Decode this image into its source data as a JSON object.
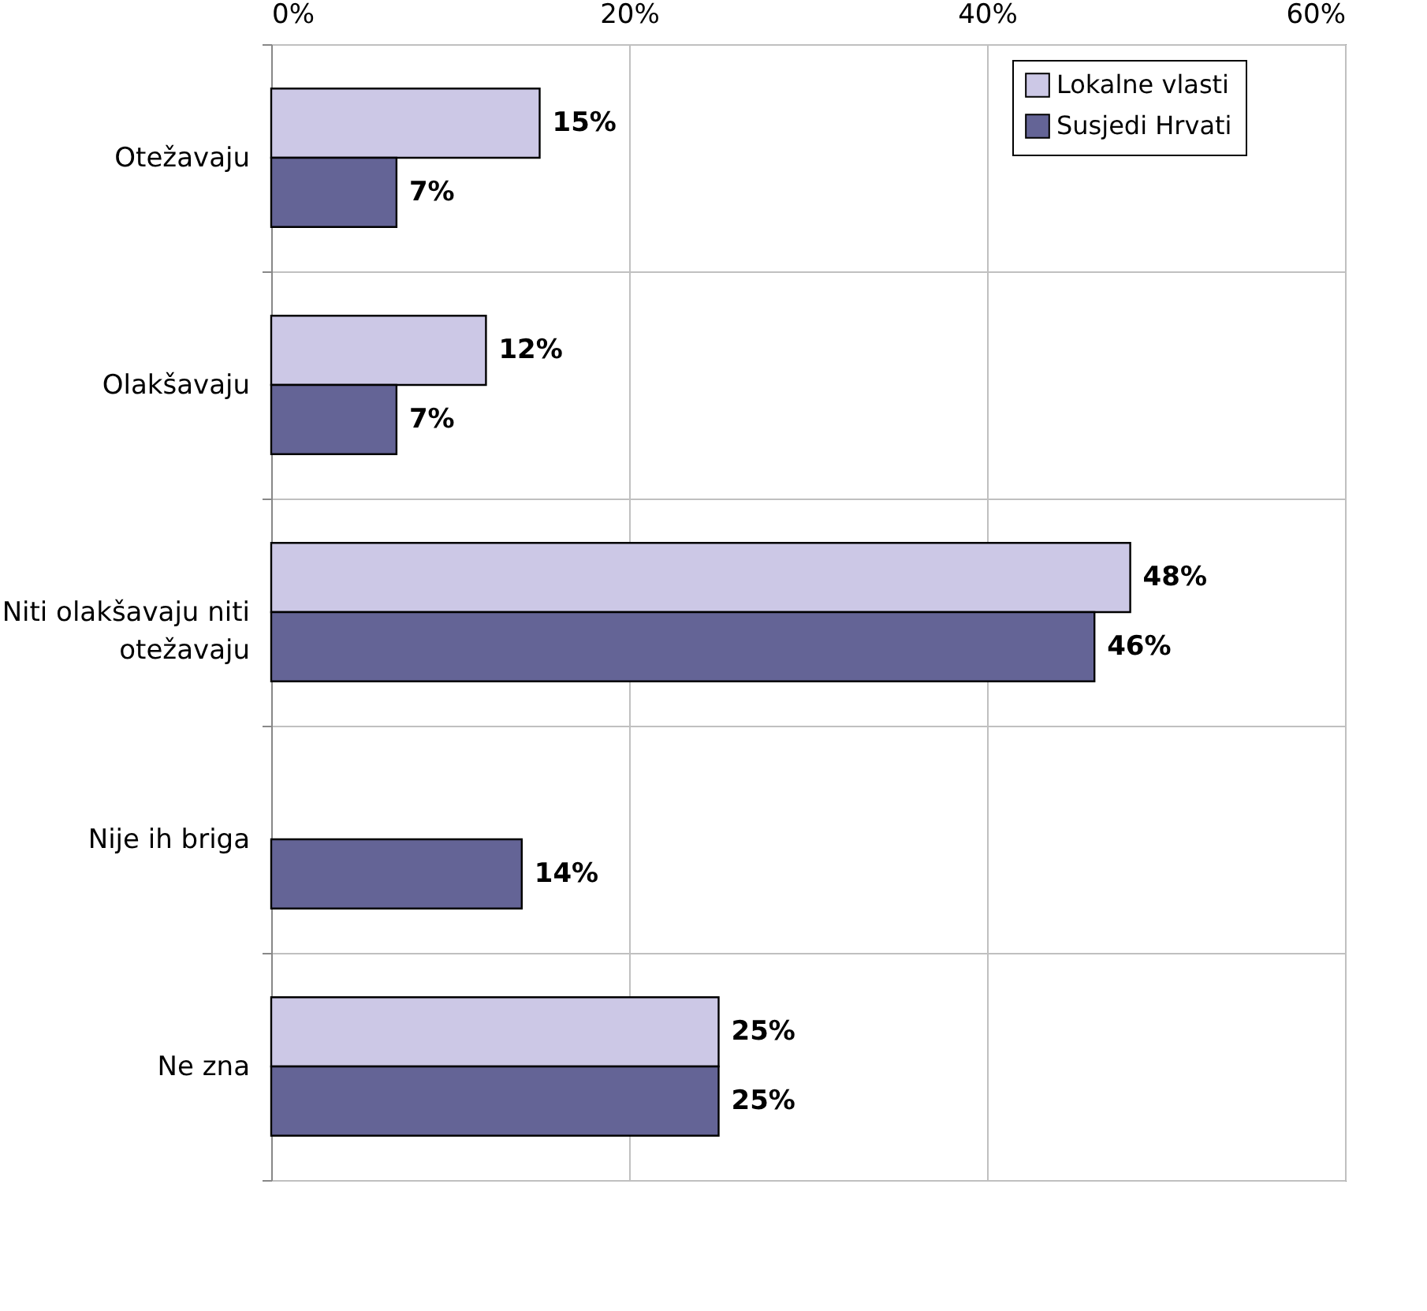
{
  "chart_data": {
    "type": "bar",
    "orientation": "horizontal",
    "categories": [
      "Otežavaju",
      "Olakšavaju",
      "Niti olakšavaju niti otežavaju",
      "Nije ih briga",
      "Ne zna"
    ],
    "series": [
      {
        "name": "Lokalne vlasti",
        "color": "#ccc8e6",
        "values": [
          15,
          12,
          48,
          null,
          25
        ],
        "value_labels": [
          "15%",
          "12%",
          "48%",
          null,
          "25%"
        ]
      },
      {
        "name": "Susjedi Hrvati",
        "color": "#646496",
        "values": [
          7,
          7,
          46,
          14,
          25
        ],
        "value_labels": [
          "7%",
          "7%",
          "46%",
          "14%",
          "25%"
        ]
      }
    ],
    "xlim": [
      0,
      60
    ],
    "xticks": [
      {
        "value": 0,
        "label": "0%"
      },
      {
        "value": 20,
        "label": "20%"
      },
      {
        "value": 40,
        "label": "40%"
      },
      {
        "value": 60,
        "label": "60%"
      }
    ],
    "grid": true,
    "legend": "top right"
  }
}
